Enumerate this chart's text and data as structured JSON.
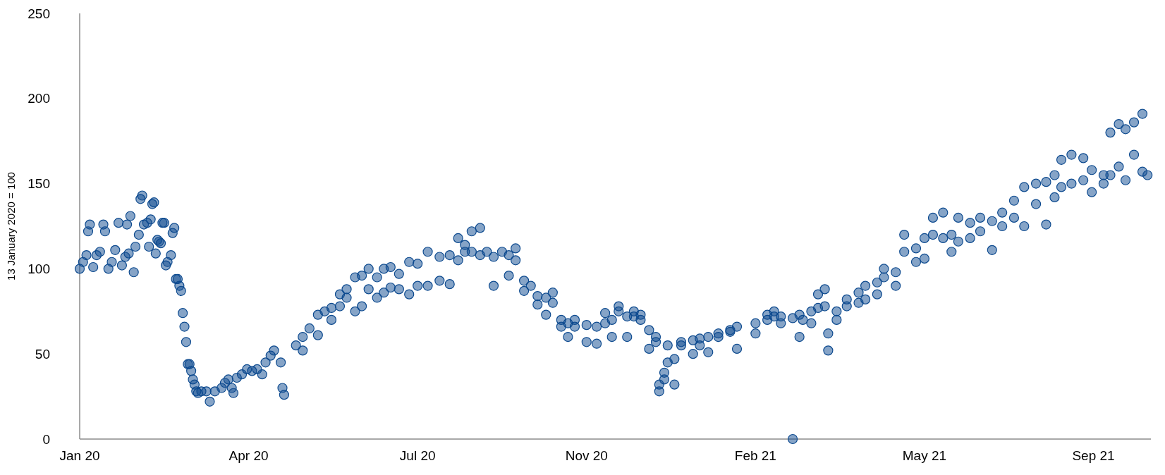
{
  "chart_data": {
    "type": "scatter",
    "ylabel": "13 January 2020 = 100",
    "marker": "circle",
    "grid": false,
    "xlim": [
      "2020-01-13",
      "2021-10-08"
    ],
    "ylim": [
      0,
      250
    ],
    "yticks": [
      0,
      50,
      100,
      150,
      200,
      250
    ],
    "xticks": [
      {
        "value": "2020-01-13",
        "label": "Jan 20"
      },
      {
        "value": "2020-04-22",
        "label": "Apr 20"
      },
      {
        "value": "2020-07-31",
        "label": "Jul 20"
      },
      {
        "value": "2020-11-08",
        "label": "Nov 20"
      },
      {
        "value": "2021-02-16",
        "label": "Feb 21"
      },
      {
        "value": "2021-05-27",
        "label": "May 21"
      },
      {
        "value": "2021-09-04",
        "label": "Sep 21"
      }
    ],
    "series": [
      {
        "color": "#0d4a8f",
        "x": [
          "2020-01-13",
          "2020-01-15",
          "2020-01-17",
          "2020-01-18",
          "2020-01-19",
          "2020-01-21",
          "2020-01-23",
          "2020-01-25",
          "2020-01-27",
          "2020-01-28",
          "2020-01-30",
          "2020-02-01",
          "2020-02-03",
          "2020-02-05",
          "2020-02-07",
          "2020-02-09",
          "2020-02-10",
          "2020-02-11",
          "2020-02-12",
          "2020-02-14",
          "2020-02-15",
          "2020-02-17",
          "2020-02-18",
          "2020-02-19",
          "2020-02-20",
          "2020-02-22",
          "2020-02-23",
          "2020-02-24",
          "2020-02-25",
          "2020-02-26",
          "2020-02-27",
          "2020-02-28",
          "2020-02-29",
          "2020-03-01",
          "2020-03-02",
          "2020-03-03",
          "2020-03-04",
          "2020-03-05",
          "2020-03-07",
          "2020-03-08",
          "2020-03-09",
          "2020-03-10",
          "2020-03-11",
          "2020-03-12",
          "2020-03-13",
          "2020-03-14",
          "2020-03-15",
          "2020-03-16",
          "2020-03-17",
          "2020-03-18",
          "2020-03-19",
          "2020-03-20",
          "2020-03-21",
          "2020-03-22",
          "2020-03-23",
          "2020-03-25",
          "2020-03-28",
          "2020-03-30",
          "2020-04-02",
          "2020-04-06",
          "2020-04-08",
          "2020-04-10",
          "2020-04-12",
          "2020-04-13",
          "2020-04-15",
          "2020-04-18",
          "2020-04-21",
          "2020-04-24",
          "2020-04-27",
          "2020-04-30",
          "2020-05-02",
          "2020-05-05",
          "2020-05-07",
          "2020-05-11",
          "2020-05-12",
          "2020-05-13",
          "2020-05-20",
          "2020-05-24",
          "2020-05-24",
          "2020-05-28",
          "2020-06-02",
          "2020-06-02",
          "2020-06-06",
          "2020-06-10",
          "2020-06-10",
          "2020-06-15",
          "2020-06-15",
          "2020-06-19",
          "2020-06-19",
          "2020-06-24",
          "2020-06-24",
          "2020-06-28",
          "2020-06-28",
          "2020-07-02",
          "2020-07-02",
          "2020-07-07",
          "2020-07-07",
          "2020-07-11",
          "2020-07-11",
          "2020-07-15",
          "2020-07-15",
          "2020-07-20",
          "2020-07-20",
          "2020-07-26",
          "2020-07-26",
          "2020-07-31",
          "2020-07-31",
          "2020-08-06",
          "2020-08-06",
          "2020-08-13",
          "2020-08-13",
          "2020-08-19",
          "2020-08-19",
          "2020-08-24",
          "2020-08-24",
          "2020-08-28",
          "2020-08-28",
          "2020-09-01",
          "2020-09-01",
          "2020-09-06",
          "2020-09-06",
          "2020-09-10",
          "2020-09-14",
          "2020-09-14",
          "2020-09-19",
          "2020-09-23",
          "2020-09-23",
          "2020-09-27",
          "2020-09-27",
          "2020-10-02",
          "2020-10-02",
          "2020-10-06",
          "2020-10-10",
          "2020-10-10",
          "2020-10-15",
          "2020-10-15",
          "2020-10-19",
          "2020-10-19",
          "2020-10-24",
          "2020-10-24",
          "2020-10-28",
          "2020-10-28",
          "2020-11-01",
          "2020-11-01",
          "2020-11-08",
          "2020-11-08",
          "2020-11-14",
          "2020-11-14",
          "2020-11-19",
          "2020-11-19",
          "2020-11-23",
          "2020-11-23",
          "2020-11-27",
          "2020-11-27",
          "2020-12-02",
          "2020-12-02",
          "2020-12-06",
          "2020-12-06",
          "2020-12-10",
          "2020-12-10",
          "2020-12-15",
          "2020-12-15",
          "2020-12-19",
          "2020-12-19",
          "2020-12-21",
          "2020-12-21",
          "2020-12-24",
          "2020-12-24",
          "2020-12-26",
          "2020-12-26",
          "2020-12-30",
          "2020-12-30",
          "2021-01-03",
          "2021-01-03",
          "2021-01-10",
          "2021-01-10",
          "2021-01-14",
          "2021-01-14",
          "2021-01-19",
          "2021-01-19",
          "2021-01-25",
          "2021-01-25",
          "2021-02-01",
          "2021-02-01",
          "2021-02-05",
          "2021-02-05",
          "2021-02-16",
          "2021-02-16",
          "2021-02-23",
          "2021-02-23",
          "2021-02-27",
          "2021-02-27",
          "2021-03-03",
          "2021-03-03",
          "2021-03-10",
          "2021-03-10",
          "2021-03-14",
          "2021-03-14",
          "2021-03-16",
          "2021-03-21",
          "2021-03-21",
          "2021-03-25",
          "2021-03-25",
          "2021-03-29",
          "2021-03-29",
          "2021-03-31",
          "2021-03-31",
          "2021-04-05",
          "2021-04-05",
          "2021-04-11",
          "2021-04-11",
          "2021-04-18",
          "2021-04-18",
          "2021-04-22",
          "2021-04-22",
          "2021-04-29",
          "2021-04-29",
          "2021-05-03",
          "2021-05-03",
          "2021-05-10",
          "2021-05-10",
          "2021-05-15",
          "2021-05-15",
          "2021-05-22",
          "2021-05-22",
          "2021-05-27",
          "2021-05-27",
          "2021-06-01",
          "2021-06-01",
          "2021-06-07",
          "2021-06-07",
          "2021-06-12",
          "2021-06-12",
          "2021-06-16",
          "2021-06-16",
          "2021-06-23",
          "2021-06-23",
          "2021-06-29",
          "2021-06-29",
          "2021-07-06",
          "2021-07-06",
          "2021-07-12",
          "2021-07-12",
          "2021-07-19",
          "2021-07-19",
          "2021-07-25",
          "2021-07-25",
          "2021-08-01",
          "2021-08-01",
          "2021-08-07",
          "2021-08-07",
          "2021-08-12",
          "2021-08-12",
          "2021-08-16",
          "2021-08-16",
          "2021-08-22",
          "2021-08-22",
          "2021-08-29",
          "2021-08-29",
          "2021-09-03",
          "2021-09-03",
          "2021-09-10",
          "2021-09-10",
          "2021-09-14",
          "2021-09-14",
          "2021-09-19",
          "2021-09-19",
          "2021-09-23",
          "2021-09-23",
          "2021-09-28",
          "2021-09-28",
          "2021-10-03",
          "2021-10-03",
          "2021-10-06"
        ],
        "values": [
          100,
          104,
          108,
          122,
          126,
          101,
          108,
          110,
          126,
          122,
          100,
          104,
          111,
          127,
          102,
          107,
          126,
          109,
          131,
          98,
          113,
          120,
          141,
          143,
          126,
          127,
          113,
          129,
          138,
          139,
          109,
          117,
          116,
          115,
          127,
          127,
          102,
          104,
          108,
          121,
          124,
          94,
          94,
          90,
          87,
          74,
          66,
          57,
          44,
          44,
          40,
          35,
          32,
          28,
          27,
          28,
          28,
          22,
          28,
          30,
          33,
          35,
          30,
          27,
          36,
          38,
          41,
          40,
          41,
          38,
          45,
          49,
          52,
          45,
          30,
          26,
          55,
          52,
          60,
          65,
          73,
          61,
          75,
          70,
          77,
          85,
          78,
          83,
          88,
          95,
          75,
          96,
          78,
          100,
          88,
          95,
          83,
          100,
          86,
          101,
          89,
          97,
          88,
          104,
          85,
          103,
          90,
          110,
          90,
          107,
          93,
          108,
          91,
          118,
          105,
          114,
          110,
          122,
          110,
          124,
          108,
          110,
          107,
          90,
          110,
          108,
          96,
          105,
          112,
          93,
          87,
          90,
          84,
          79,
          83,
          73,
          80,
          86,
          66,
          70,
          68,
          60,
          66,
          70,
          67,
          57,
          66,
          56,
          68,
          74,
          70,
          60,
          78,
          75,
          72,
          60,
          75,
          72,
          73,
          70,
          64,
          53,
          60,
          57,
          32,
          28,
          35,
          39,
          55,
          45,
          47,
          32,
          55,
          57,
          58,
          50,
          59,
          55,
          60,
          51,
          62,
          60,
          63,
          64,
          66,
          53,
          68,
          62,
          73,
          70,
          75,
          72,
          72,
          68,
          71,
          0,
          73,
          60,
          70,
          68,
          75,
          77,
          85,
          88,
          78,
          62,
          52,
          75,
          70,
          82,
          78,
          86,
          80,
          90,
          82,
          92,
          85,
          100,
          95,
          98,
          90,
          120,
          110,
          112,
          104,
          118,
          106,
          130,
          120,
          133,
          118,
          120,
          110,
          130,
          116,
          127,
          118,
          130,
          122,
          128,
          111,
          133,
          125,
          140,
          130,
          148,
          125,
          150,
          138,
          151,
          126,
          155,
          142,
          164,
          148,
          167,
          150,
          165,
          152,
          158,
          145,
          155,
          150,
          180,
          155,
          185,
          160,
          182,
          152,
          186,
          167,
          191,
          157,
          155
        ]
      }
    ]
  }
}
